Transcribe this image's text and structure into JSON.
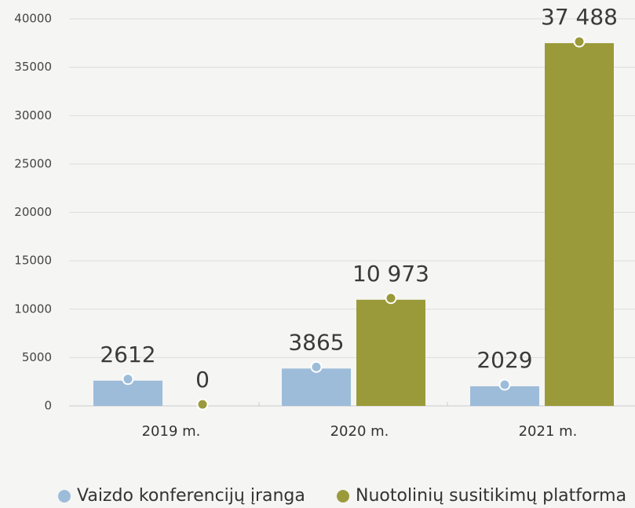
{
  "chart_data": {
    "type": "bar",
    "categories": [
      "2019 m.",
      "2020 m.",
      "2021 m."
    ],
    "series": [
      {
        "name": "Vaizdo konferencijų įranga",
        "color": "#9dbcd9",
        "values": [
          2612,
          3865,
          2029
        ],
        "value_labels": [
          "2612",
          "3865",
          "2029"
        ]
      },
      {
        "name": "Nuotolinių susitikimų platforma",
        "color": "#9b9a3a",
        "values": [
          0,
          10973,
          37488
        ],
        "value_labels": [
          "0",
          "10 973",
          "37 488"
        ]
      }
    ],
    "ylim": [
      0,
      40000
    ],
    "yticks": [
      0,
      5000,
      10000,
      15000,
      20000,
      25000,
      30000,
      35000,
      40000
    ],
    "grid": true
  }
}
